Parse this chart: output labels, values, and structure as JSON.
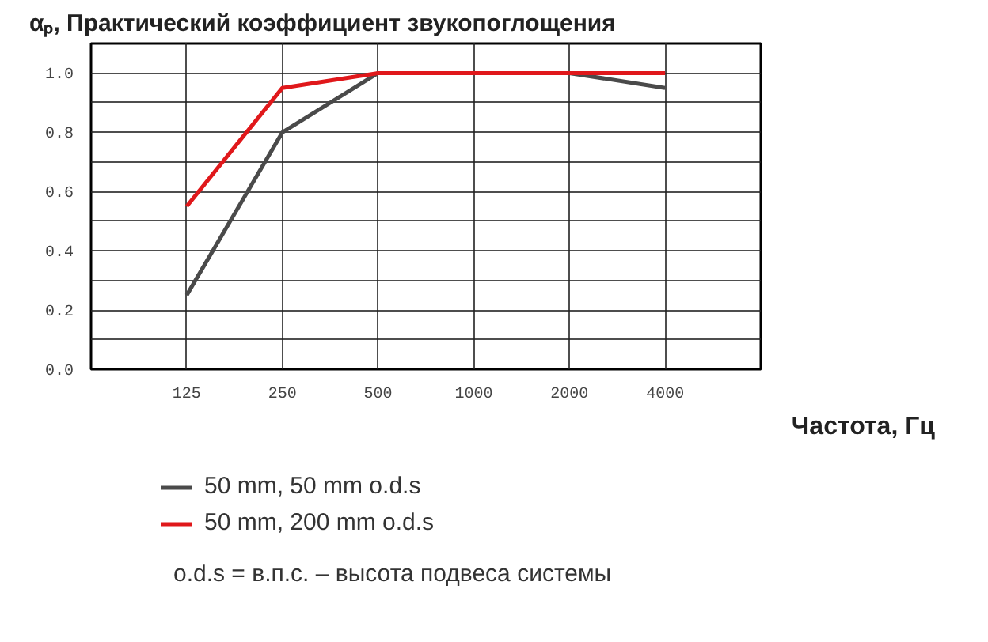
{
  "chart_data": {
    "type": "line",
    "title": "αₚ, Практический коэффициент звукопоглощения",
    "xlabel": "Частота, Гц",
    "categories": [
      "125",
      "250",
      "500",
      "1000",
      "2000",
      "4000"
    ],
    "series": [
      {
        "name": "50 mm, 50 mm o.d.s",
        "color": "#4a4a4a",
        "values": [
          0.25,
          0.8,
          1.0,
          1.0,
          1.0,
          0.95
        ]
      },
      {
        "name": "50 mm, 200 mm o.d.s",
        "color": "#e0181b",
        "values": [
          0.55,
          0.95,
          1.0,
          1.0,
          1.0,
          1.0
        ]
      }
    ],
    "ylim": [
      0,
      1.1
    ],
    "yticks": [
      {
        "value": 0,
        "label": "0.0"
      },
      {
        "value": 0.1,
        "label": null
      },
      {
        "value": 0.2,
        "label": "0.2"
      },
      {
        "value": 0.3,
        "label": null
      },
      {
        "value": 0.4,
        "label": "0.4"
      },
      {
        "value": 0.5,
        "label": null
      },
      {
        "value": 0.6,
        "label": "0.6"
      },
      {
        "value": 0.7,
        "label": null
      },
      {
        "value": 0.8,
        "label": "0.8"
      },
      {
        "value": 0.9,
        "label": null
      },
      {
        "value": 1.0,
        "label": "1.0"
      }
    ],
    "grid": true,
    "legend": "bottom",
    "marker": "none",
    "line_style": "solid",
    "annotations": [
      "o.d.s = в.п.с. – высота подвеса системы"
    ]
  }
}
